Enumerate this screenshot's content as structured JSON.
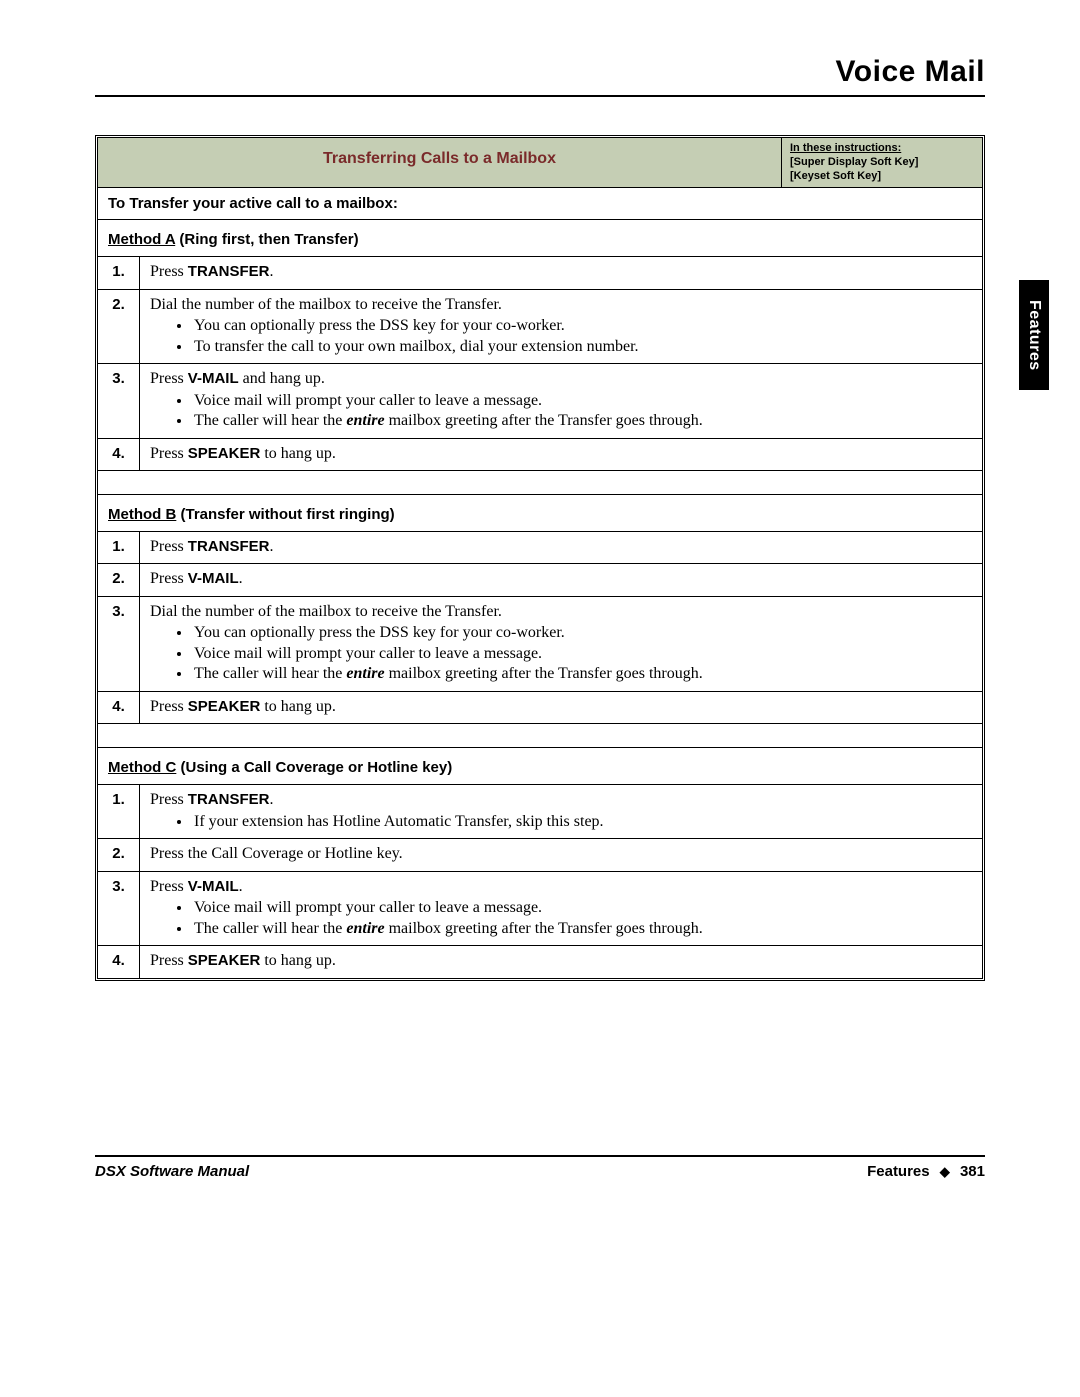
{
  "page": {
    "title": "Voice Mail",
    "side_tab": "Features",
    "footer_left": "DSX Software Manual",
    "footer_section": "Features",
    "footer_page": "381"
  },
  "table": {
    "header_title": "Transferring Calls to a Mailbox",
    "header_note_1": "In these instructions:",
    "header_note_2": "[Super Display Soft Key]",
    "header_note_3": "[Keyset Soft Key]",
    "section_header": "To Transfer your active call to a mailbox:",
    "methods": [
      {
        "name": "Method A",
        "rest": " (Ring first, then Transfer)",
        "steps": [
          {
            "num": "1.",
            "parts": [
              {
                "t": "Press "
              },
              {
                "t": "TRANSFER",
                "b": true
              },
              {
                "t": "."
              }
            ]
          },
          {
            "num": "2.",
            "parts": [
              {
                "t": "Dial the number of the mailbox to receive the Transfer."
              }
            ],
            "bullets": [
              [
                {
                  "t": "You can optionally press the DSS key for your co-worker."
                }
              ],
              [
                {
                  "t": "To transfer the call to your own mailbox, dial your extension number."
                }
              ]
            ]
          },
          {
            "num": "3.",
            "parts": [
              {
                "t": "Press "
              },
              {
                "t": "V-MAIL",
                "b": true
              },
              {
                "t": " and hang up."
              }
            ],
            "bullets": [
              [
                {
                  "t": "Voice mail will prompt your caller to leave a message."
                }
              ],
              [
                {
                  "t": "The caller will hear the "
                },
                {
                  "t": "entire",
                  "bi": true
                },
                {
                  "t": " mailbox greeting after the Transfer goes through."
                }
              ]
            ]
          },
          {
            "num": "4.",
            "parts": [
              {
                "t": "Press "
              },
              {
                "t": "SPEAKER",
                "b": true
              },
              {
                "t": " to hang up."
              }
            ]
          }
        ]
      },
      {
        "name": "Method B",
        "rest": " (Transfer without first ringing)",
        "steps": [
          {
            "num": "1.",
            "parts": [
              {
                "t": "Press "
              },
              {
                "t": "TRANSFER",
                "b": true
              },
              {
                "t": "."
              }
            ]
          },
          {
            "num": "2.",
            "parts": [
              {
                "t": "Press "
              },
              {
                "t": "V-MAIL",
                "b": true
              },
              {
                "t": "."
              }
            ]
          },
          {
            "num": "3.",
            "parts": [
              {
                "t": "Dial the number of the mailbox to receive the Transfer."
              }
            ],
            "bullets": [
              [
                {
                  "t": "You can optionally press the DSS key for your co-worker."
                }
              ],
              [
                {
                  "t": "Voice mail will prompt your caller to leave a message."
                }
              ],
              [
                {
                  "t": "The caller will hear the "
                },
                {
                  "t": "entire",
                  "bi": true
                },
                {
                  "t": " mailbox greeting after the Transfer goes through."
                }
              ]
            ]
          },
          {
            "num": "4.",
            "parts": [
              {
                "t": "Press "
              },
              {
                "t": "SPEAKER",
                "b": true
              },
              {
                "t": " to hang up."
              }
            ]
          }
        ]
      },
      {
        "name": "Method C",
        "rest": " (Using a Call Coverage or Hotline key)",
        "steps": [
          {
            "num": "1.",
            "parts": [
              {
                "t": "Press "
              },
              {
                "t": "TRANSFER",
                "b": true
              },
              {
                "t": "."
              }
            ],
            "bullets": [
              [
                {
                  "t": "If your extension has Hotline Automatic Transfer, skip this step."
                }
              ]
            ]
          },
          {
            "num": "2.",
            "parts": [
              {
                "t": "Press the Call Coverage or Hotline key."
              }
            ]
          },
          {
            "num": "3.",
            "parts": [
              {
                "t": "Press "
              },
              {
                "t": "V-MAIL",
                "b": true
              },
              {
                "t": "."
              }
            ],
            "bullets": [
              [
                {
                  "t": "Voice mail will prompt your caller to leave a message."
                }
              ],
              [
                {
                  "t": "The caller will hear the "
                },
                {
                  "t": "entire",
                  "bi": true
                },
                {
                  "t": " mailbox greeting after the Transfer goes through."
                }
              ]
            ]
          },
          {
            "num": "4.",
            "parts": [
              {
                "t": "Press "
              },
              {
                "t": "SPEAKER",
                "b": true
              },
              {
                "t": " to hang up."
              }
            ]
          }
        ]
      }
    ]
  }
}
